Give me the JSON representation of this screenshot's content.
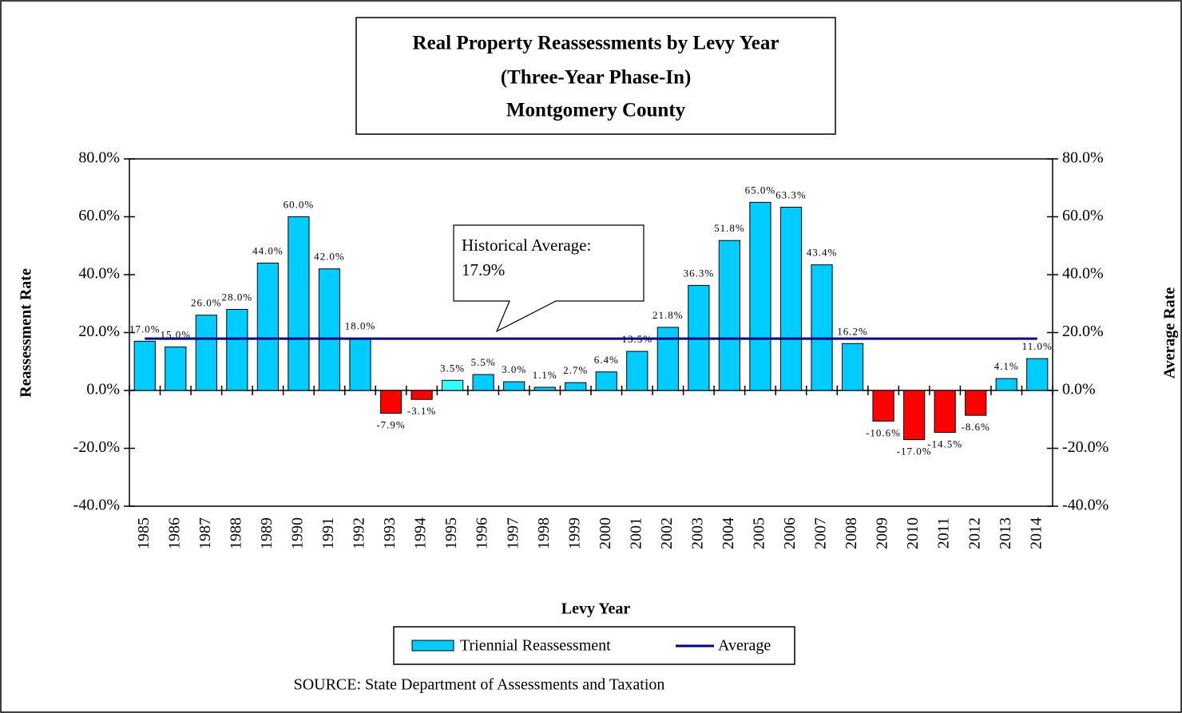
{
  "chart_data": {
    "type": "bar",
    "title": [
      "Real Property Reassessments by Levy Year",
      "(Three-Year Phase-In)",
      "Montgomery County"
    ],
    "xlabel": "Levy Year",
    "ylabel": "Reassessment Rate",
    "y2label": "Average Rate",
    "source": "SOURCE:  State Department of Assessments and Taxation",
    "categories": [
      "1985",
      "1986",
      "1987",
      "1988",
      "1989",
      "1990",
      "1991",
      "1992",
      "1993",
      "1994",
      "1995",
      "1996",
      "1997",
      "1998",
      "1999",
      "2000",
      "2001",
      "2002",
      "2003",
      "2004",
      "2005",
      "2006",
      "2007",
      "2008",
      "2009",
      "2010",
      "2011",
      "2012",
      "2013",
      "2014"
    ],
    "series": [
      {
        "name": "Triennial Reassessment",
        "color": "#00ccff",
        "colors": [
          "#00ccff",
          "#00ccff",
          "#00ccff",
          "#00ccff",
          "#00ccff",
          "#00ccff",
          "#00ccff",
          "#00ccff",
          "#ff0000",
          "#ff0000",
          "#33ffff",
          "#00ccff",
          "#00ccff",
          "#00ccff",
          "#00ccff",
          "#00ccff",
          "#00ccff",
          "#00ccff",
          "#00ccff",
          "#00ccff",
          "#00ccff",
          "#00ccff",
          "#00ccff",
          "#00ccff",
          "#ff0000",
          "#ff0000",
          "#ff0000",
          "#ff0000",
          "#00ccff",
          "#00ccff"
        ],
        "values": [
          17.0,
          15.0,
          26.0,
          28.0,
          44.0,
          60.0,
          42.0,
          18.0,
          -7.9,
          -3.1,
          3.5,
          5.5,
          3.0,
          1.1,
          2.7,
          6.4,
          13.5,
          21.8,
          36.3,
          51.8,
          65.0,
          63.3,
          43.4,
          16.2,
          -10.6,
          -17.0,
          -14.5,
          -8.6,
          4.1,
          11.0
        ],
        "value_labels": [
          "17.0%",
          "15.0%",
          "26.0%",
          "28.0%",
          "44.0%",
          "60.0%",
          "42.0%",
          "18.0%",
          "-7.9%",
          "-3.1%",
          "3.5%",
          "5.5%",
          "3.0%",
          "1.1%",
          "2.7%",
          "6.4%",
          "13.5%",
          "21.8%",
          "36.3%",
          "51.8%",
          "65.0%",
          "63.3%",
          "43.4%",
          "16.2%",
          "-10.6%",
          "-17.0%",
          "-14.5%",
          "-8.6%",
          "4.1%",
          "11.0%"
        ]
      },
      {
        "name": "Average",
        "color": "#000080",
        "axis": "y2",
        "value": 17.9,
        "value_label": "17.9%"
      }
    ],
    "annotation": "Historical Average:",
    "ylim": [
      -40,
      80
    ],
    "yticks": [
      {
        "value": -40,
        "label": "-40.0%"
      },
      {
        "value": -20,
        "label": "-20.0%"
      },
      {
        "value": 0,
        "label": "0.0%"
      },
      {
        "value": 20,
        "label": "20.0%"
      },
      {
        "value": 40,
        "label": "40.0%"
      },
      {
        "value": 60,
        "label": "60.0%"
      },
      {
        "value": 80,
        "label": "80.0%"
      }
    ],
    "y2lim": [
      -40,
      80
    ],
    "y2ticks": [
      {
        "value": -40,
        "label": "-40.0%"
      },
      {
        "value": -20,
        "label": "-20.0%"
      },
      {
        "value": 0,
        "label": "0.0%"
      },
      {
        "value": 20,
        "label": "20.0%"
      },
      {
        "value": 40,
        "label": "40.0%"
      },
      {
        "value": 60,
        "label": "60.0%"
      },
      {
        "value": 80,
        "label": "80.0%"
      }
    ]
  }
}
